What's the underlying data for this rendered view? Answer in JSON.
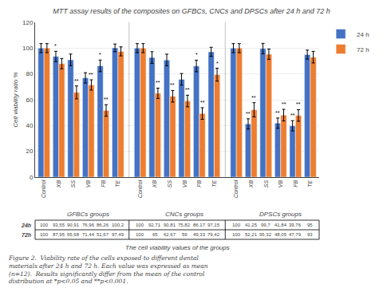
{
  "chart_data": {
    "type": "bar",
    "title": "MTT assay results of the composites on GFBCs, CNCs and DPSCs after 24 h and 72 h",
    "ylabel": "Cell viability ratio %",
    "xlabel": "The cell viability values of the groups",
    "caption": [
      "Figure 2.  Viability rate of the cells exposed to different dental",
      "materials after 24 h and 72 h. Each value was expressed as mean",
      "(n=12).  Results significantly differ from the mean of the control",
      "distribution at *p<0.05 and **p<0.001."
    ],
    "groups": [
      "GFBCs groups",
      "CNCs groups",
      "DPSCs groups"
    ],
    "categories": [
      "Control",
      "XB",
      "SS",
      "VB",
      "FB",
      "TE",
      "Control",
      "XB",
      "SS",
      "VB",
      "FB",
      "TE",
      "Control",
      "XB",
      "SS",
      "VB",
      "FB",
      "TE"
    ],
    "series": [
      {
        "name": "24 h",
        "color": "#4472C4",
        "table_label": "24h",
        "values": [
          100,
          93.55,
          90.91,
          76.96,
          86.26,
          100.2,
          100,
          92.71,
          90.81,
          75.82,
          86.17,
          97.15,
          100,
          41.25,
          99.7,
          41.84,
          39.76,
          95
        ],
        "errors": [
          3.5,
          4.0,
          4.5,
          4.0,
          4.5,
          3.0,
          3.5,
          4.5,
          4.5,
          4.5,
          4.5,
          3.5,
          3.5,
          4.0,
          4.0,
          4.0,
          4.0,
          3.5
        ],
        "significance": [
          null,
          "*",
          null,
          null,
          "*",
          null,
          null,
          null,
          null,
          null,
          "*",
          null,
          null,
          "**",
          null,
          "**",
          "**",
          null
        ],
        "value_labels": [
          "100",
          "93,55",
          "90,91",
          "76,96",
          "86,26",
          "100,2",
          "100",
          "92,71",
          "90,81",
          "75,82",
          "86,17",
          "97,15",
          "100",
          "41,25",
          "99,7",
          "41,84",
          "39,76",
          "95"
        ]
      },
      {
        "name": "72 h",
        "color": "#ED7D31",
        "table_label": "72h",
        "values": [
          100,
          87.95,
          65.68,
          71.44,
          51.67,
          97.49,
          100,
          65,
          62.67,
          59,
          49.33,
          79.42,
          100,
          52.21,
          95.32,
          48.05,
          47.79,
          93
        ],
        "errors": [
          3.5,
          4.0,
          5.0,
          4.0,
          4.5,
          3.5,
          3.5,
          4.0,
          4.5,
          4.5,
          4.5,
          5.0,
          3.5,
          5.5,
          4.0,
          4.5,
          4.5,
          4.5
        ],
        "significance": [
          null,
          null,
          "**",
          "**",
          "**",
          null,
          null,
          "**",
          "**",
          "**",
          "**",
          "*",
          null,
          "**",
          null,
          "**",
          "**",
          null
        ],
        "value_labels": [
          "100",
          "87,95",
          "65,68",
          "71,44",
          "51,67",
          "97,49",
          "100",
          "65",
          "62,67",
          "59",
          "49,33",
          "79,42",
          "100",
          "52,21",
          "95,32",
          "48,05",
          "47,79",
          "93"
        ]
      }
    ],
    "ylim": [
      0,
      120
    ],
    "yticks": [
      0,
      20,
      40,
      60,
      80,
      100,
      120
    ],
    "grid": true,
    "legend": "upper right"
  }
}
